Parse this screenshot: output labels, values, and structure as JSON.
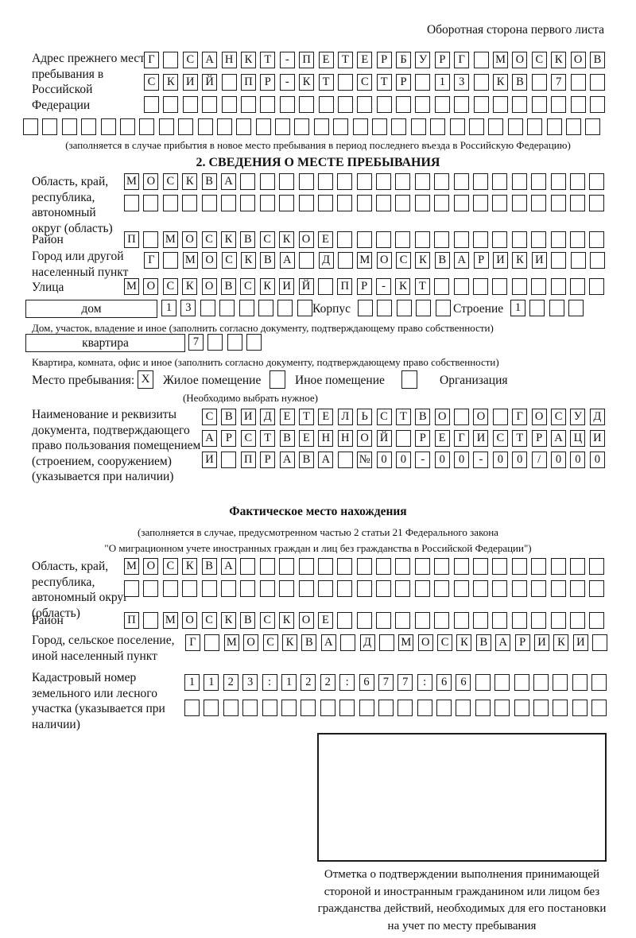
{
  "header": {
    "side_note": "Оборотная сторона первого листа"
  },
  "prev_address": {
    "label": "Адрес прежнего места пребывания в Российской Федерации",
    "rows": [
      {
        "n": 24,
        "v": "Г САНКТ-ПЕТЕРБУРГ МОСКОВ"
      },
      {
        "n": 24,
        "v": "СКИЙ ПР-КТ СТР 13 КВ 7"
      },
      {
        "n": 24,
        "v": ""
      },
      {
        "n": 30,
        "v": ""
      }
    ],
    "note": "(заполняется в случае прибытия в новое место пребывания в период последнего въезда в Российскую Федерацию)"
  },
  "section2": {
    "title": "2. СВЕДЕНИЯ О МЕСТЕ ПРЕБЫВАНИЯ",
    "region": {
      "label": "Область, край, республика, автономный округ (область)",
      "rows": [
        {
          "n": 25,
          "v": "МОСКВА"
        },
        {
          "n": 25,
          "v": ""
        }
      ]
    },
    "district": {
      "label": "Район",
      "row": {
        "n": 25,
        "v": "П МОСКВСКОЕ"
      }
    },
    "city": {
      "label": "Город или другой населенный пункт",
      "row": {
        "n": 24,
        "v": "Г МОСКВА Д МОСКВАРИКИ"
      }
    },
    "street": {
      "label": "Улица",
      "row": {
        "n": 25,
        "v": "МОСКОВСКИЙ ПР-КТ"
      }
    },
    "house": {
      "box_label": "дом",
      "cells": {
        "n": 8,
        "v": "13"
      },
      "korpus_label": "Корпус",
      "korpus_cells": {
        "n": 5,
        "v": ""
      },
      "stroenie_label": "Строение",
      "stroenie_cells": {
        "n": 4,
        "v": "1"
      },
      "note": "Дом, участок, владение и иное (заполнить согласно документу, подтверждающему право собственности)"
    },
    "apartment": {
      "box_label": "квартира",
      "cells": {
        "n": 4,
        "v": "7"
      },
      "note": "Квартира, комната, офис и иное (заполнить согласно документу, подтверждающему право собственности)"
    },
    "stay_type": {
      "label": "Место пребывания:",
      "checked_mark": "X",
      "option1": "Жилое помещение",
      "option2": "Иное помещение",
      "option3": "Организация",
      "note": "(Необходимо выбрать нужное)"
    },
    "document": {
      "label": "Наименование и реквизиты документа, подтверждающего право пользования помещением (строением, сооружением) (указывается при наличии)",
      "rows": [
        {
          "n": 21,
          "v": "СВИДЕТЕЛЬСТВО О ГОСУД"
        },
        {
          "n": 21,
          "v": "АРСТВЕННОЙ РЕГИСТРАЦИ"
        },
        {
          "n": 21,
          "v": "И ПРАВА №00-00-00/000"
        }
      ]
    }
  },
  "actual_location": {
    "title": "Фактическое место нахождения",
    "note_line1": "(заполняется в случае, предусмотренном частью 2 статьи 21 Федерального закона",
    "note_line2": "\"О миграционном учете иностранных граждан и лиц без гражданства в Российской Федерации\")",
    "region": {
      "label": "Область, край, республика, автономный округ (область)",
      "rows": [
        {
          "n": 25,
          "v": "МОСКВА"
        },
        {
          "n": 25,
          "v": ""
        }
      ]
    },
    "district": {
      "label": "Район",
      "row": {
        "n": 25,
        "v": "П МОСКВСКОЕ"
      }
    },
    "city": {
      "label": "Город, сельское поселение, иной населенный пункт",
      "row": {
        "n": 22,
        "v": "Г МОСКВА Д МОСКВАРИКИ"
      }
    },
    "cadastre": {
      "label": "Кадастровый номер земельного или лесного участка (указывается при наличии)",
      "rows": [
        {
          "n": 22,
          "v": "1123:122:677:66"
        },
        {
          "n": 22,
          "v": ""
        }
      ]
    },
    "stamp_note": "Отметка о подтверждении выполнения принимающей стороной и иностранным гражданином или лицом без гражданства действий, необходимых для его постановки на учет по месту пребывания"
  }
}
